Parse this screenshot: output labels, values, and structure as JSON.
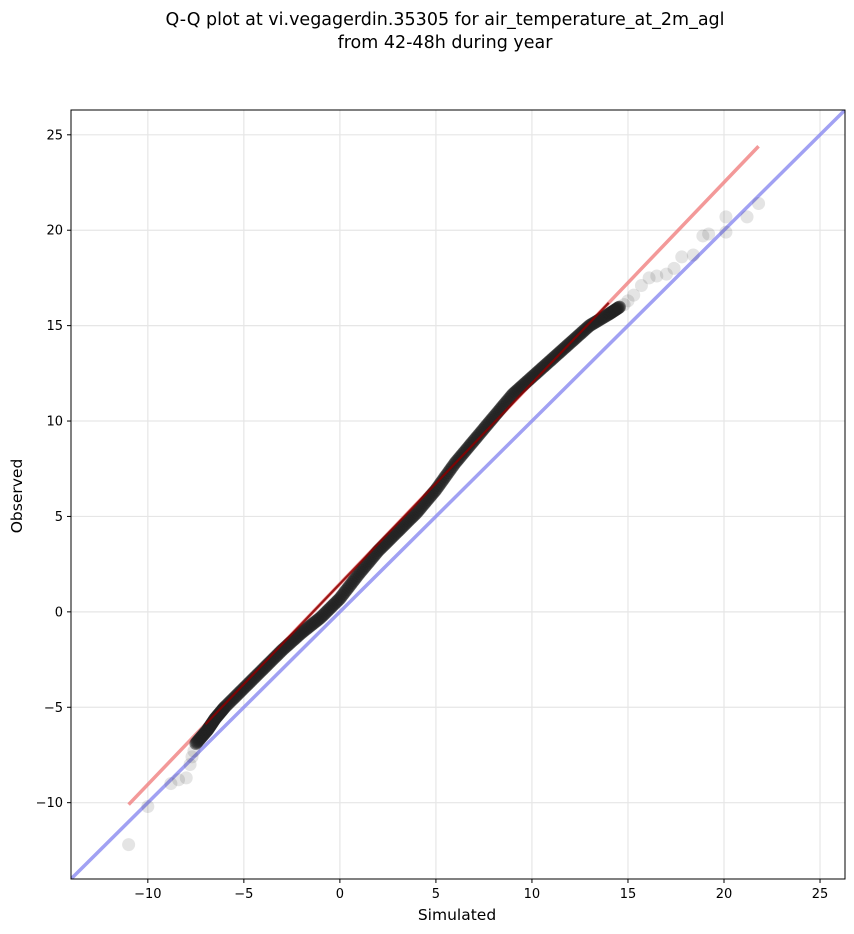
{
  "chart_data": {
    "type": "scatter",
    "title": "Q-Q plot at vi.vegagerdin.35305 for air_temperature_at_2m_agl",
    "subtitle": "from 42-48h during year",
    "xlabel": "Simulated",
    "ylabel": "Observed",
    "xlim": [
      -14.0,
      26.3
    ],
    "ylim": [
      -14.0,
      26.3
    ],
    "x_ticks": [
      -10,
      -5,
      0,
      5,
      10,
      15,
      20,
      25
    ],
    "y_ticks": [
      -10,
      -5,
      0,
      5,
      10,
      15,
      20,
      25
    ],
    "x_tick_labels": [
      "−10",
      "−5",
      "0",
      "5",
      "10",
      "15",
      "20",
      "25"
    ],
    "y_tick_labels": [
      "−10",
      "−5",
      "0",
      "5",
      "10",
      "15",
      "20",
      "25"
    ],
    "grid": true,
    "colors": {
      "points": "#222222",
      "fit_line": "#f08080",
      "fit_line_inner": "#8b0000",
      "identity_line": "#8a8af0",
      "grid": "#e6e6e6"
    },
    "identity_line": {
      "x": [
        -14.0,
        26.3
      ],
      "y": [
        -14.0,
        26.3
      ]
    },
    "fit_line": {
      "x": [
        -11.0,
        21.8
      ],
      "y": [
        -10.1,
        24.4
      ]
    },
    "quantile_curve": {
      "x": [
        -7.5,
        -6.9,
        -6.5,
        -6.0,
        -5.0,
        -4.0,
        -3.0,
        -2.0,
        -1.0,
        0.0,
        1.0,
        2.0,
        3.0,
        4.0,
        5.0,
        6.0,
        7.0,
        8.0,
        9.0,
        10.0,
        11.0,
        12.0,
        13.0,
        14.0,
        14.6
      ],
      "y": [
        -6.9,
        -6.2,
        -5.6,
        -5.0,
        -4.0,
        -3.0,
        -2.0,
        -1.1,
        -0.3,
        0.7,
        2.0,
        3.2,
        4.2,
        5.2,
        6.4,
        7.8,
        9.0,
        10.2,
        11.4,
        12.3,
        13.2,
        14.1,
        15.0,
        15.6,
        16.0
      ]
    },
    "tail_points": [
      {
        "x": -11.0,
        "y": -12.2
      },
      {
        "x": -10.0,
        "y": -10.2
      },
      {
        "x": -8.8,
        "y": -9.0
      },
      {
        "x": -8.4,
        "y": -8.8
      },
      {
        "x": -8.0,
        "y": -8.7
      },
      {
        "x": -7.8,
        "y": -8.0
      },
      {
        "x": -7.7,
        "y": -7.6
      },
      {
        "x": -7.6,
        "y": -7.3
      },
      {
        "x": 14.8,
        "y": 16.1
      },
      {
        "x": 15.0,
        "y": 16.3
      },
      {
        "x": 15.3,
        "y": 16.6
      },
      {
        "x": 15.7,
        "y": 17.1
      },
      {
        "x": 16.1,
        "y": 17.5
      },
      {
        "x": 16.5,
        "y": 17.6
      },
      {
        "x": 17.0,
        "y": 17.7
      },
      {
        "x": 17.4,
        "y": 18.0
      },
      {
        "x": 17.8,
        "y": 18.6
      },
      {
        "x": 18.4,
        "y": 18.7
      },
      {
        "x": 18.9,
        "y": 19.7
      },
      {
        "x": 19.2,
        "y": 19.8
      },
      {
        "x": 20.1,
        "y": 19.9
      },
      {
        "x": 20.1,
        "y": 20.7
      },
      {
        "x": 21.2,
        "y": 20.7
      },
      {
        "x": 21.8,
        "y": 21.4
      }
    ]
  }
}
